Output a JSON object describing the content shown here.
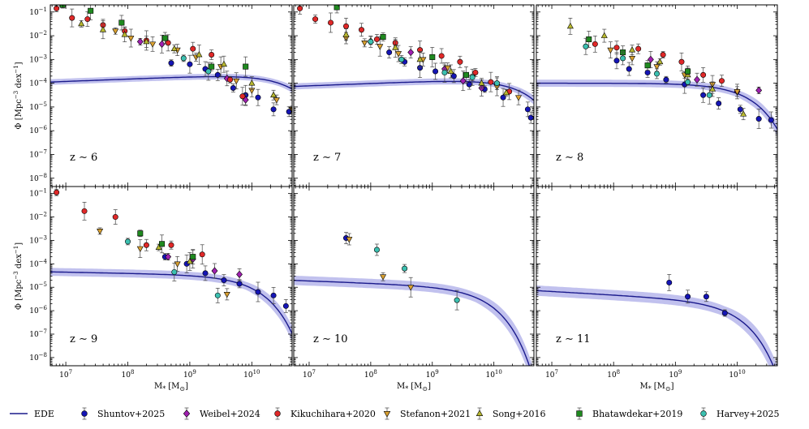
{
  "chart_data": {
    "type": "scatter",
    "description_units": {
      "x": "log10 stellar mass",
      "y": "log10 number density"
    },
    "x_label_text": "M",
    "x_label_sub": "*",
    "x_label_unit": "[M",
    "x_label_unit_sub": "⊙",
    "x_label_close": "]",
    "y_label_text": "Φ [Mpc",
    "y_label_sup1": "−3",
    "y_label_mid": " dex",
    "y_label_sup2": "−1",
    "y_label_close": "]",
    "xlim_log": [
      6.75,
      10.65
    ],
    "ylim_log": [
      -8.35,
      -0.7
    ],
    "x_tick_labels": [
      {
        "base": "10",
        "exp": "7",
        "v": 7
      },
      {
        "base": "10",
        "exp": "8",
        "v": 8
      },
      {
        "base": "10",
        "exp": "9",
        "v": 9
      },
      {
        "base": "10",
        "exp": "10",
        "v": 10
      }
    ],
    "y_tick_labels": [
      {
        "base": "10",
        "exp": "−1",
        "v": -1
      },
      {
        "base": "10",
        "exp": "−2",
        "v": -2
      },
      {
        "base": "10",
        "exp": "−3",
        "v": -3
      },
      {
        "base": "10",
        "exp": "−4",
        "v": -4
      },
      {
        "base": "10",
        "exp": "−5",
        "v": -5
      },
      {
        "base": "10",
        "exp": "−6",
        "v": -6
      },
      {
        "base": "10",
        "exp": "−7",
        "v": -7
      },
      {
        "base": "10",
        "exp": "−8",
        "v": -8
      }
    ],
    "legend": [
      {
        "name": "EDE",
        "kind": "line",
        "color": "#1a1a8c"
      },
      {
        "name": "Shuntov+2025",
        "kind": "circle",
        "color": "#1515b5"
      },
      {
        "name": "Weibel+2024",
        "kind": "diamond",
        "color": "#a020b0"
      },
      {
        "name": "Kikuchihara+2020",
        "kind": "circle",
        "color": "#e02828"
      },
      {
        "name": "Stefanon+2021",
        "kind": "tri-down",
        "color": "#d9a030"
      },
      {
        "name": "Song+2016",
        "kind": "tri-up",
        "color": "#b8b830"
      },
      {
        "name": "Bhatawdekar+2019",
        "kind": "square",
        "color": "#1f8a1f"
      },
      {
        "name": "Harvey+2025",
        "kind": "circle",
        "color": "#3cc0b0"
      }
    ],
    "panels": [
      {
        "label": "z ∼ 6",
        "model": {
          "a": -0.9,
          "mstar": 10.45,
          "logphi": -3.58,
          "band": 0.12
        },
        "series": {
          "Shuntov+2025": [
            [
              8.7,
              -3.15
            ],
            [
              9.0,
              -3.2
            ],
            [
              9.25,
              -3.4
            ],
            [
              9.45,
              -3.65
            ],
            [
              9.7,
              -4.2
            ],
            [
              9.9,
              -4.5
            ],
            [
              10.1,
              -4.6
            ],
            [
              10.35,
              -5.1
            ],
            [
              10.6,
              -5.2
            ]
          ],
          "Weibel+2024": [
            [
              8.2,
              -2.25
            ],
            [
              8.55,
              -2.35
            ],
            [
              9.6,
              -3.8
            ],
            [
              9.9,
              -4.7
            ]
          ],
          "Kikuchihara+2020": [
            [
              6.85,
              -0.85
            ],
            [
              7.1,
              -1.25
            ],
            [
              7.35,
              -1.3
            ],
            [
              7.6,
              -1.55
            ],
            [
              7.95,
              -1.8
            ],
            [
              8.3,
              -2.2
            ],
            [
              8.65,
              -2.3
            ],
            [
              9.05,
              -2.55
            ],
            [
              9.35,
              -2.8
            ],
            [
              9.65,
              -3.85
            ],
            [
              9.85,
              -4.55
            ]
          ],
          "Stefanon+2021": [
            [
              7.8,
              -1.8
            ],
            [
              8.05,
              -2.1
            ],
            [
              8.4,
              -2.35
            ],
            [
              8.8,
              -2.6
            ],
            [
              9.1,
              -2.9
            ],
            [
              9.5,
              -3.3
            ],
            [
              9.75,
              -3.9
            ],
            [
              10.0,
              -4.3
            ],
            [
              10.4,
              -4.7
            ],
            [
              10.65,
              -5.1
            ]
          ],
          "Song+2016": [
            [
              7.25,
              -1.5
            ],
            [
              7.6,
              -1.75
            ],
            [
              7.95,
              -1.95
            ],
            [
              8.3,
              -2.25
            ],
            [
              8.75,
              -2.55
            ],
            [
              9.15,
              -2.8
            ],
            [
              9.55,
              -3.2
            ],
            [
              10.0,
              -4.0
            ],
            [
              10.35,
              -4.5
            ]
          ],
          "Bhatawdekar+2019": [
            [
              6.95,
              -0.7
            ],
            [
              7.4,
              -0.95
            ],
            [
              7.9,
              -1.45
            ],
            [
              8.6,
              -2.1
            ],
            [
              9.35,
              -3.3
            ],
            [
              9.9,
              -3.3
            ]
          ],
          "Harvey+2025": [
            [
              8.9,
              -2.95
            ],
            [
              9.3,
              -3.5
            ]
          ]
        }
      },
      {
        "label": "z ∼ 7",
        "model": {
          "a": -0.9,
          "mstar": 10.3,
          "logphi": -3.78,
          "band": 0.13
        },
        "series": {
          "Shuntov+2025": [
            [
              8.3,
              -2.7
            ],
            [
              8.55,
              -3.1
            ],
            [
              8.8,
              -3.35
            ],
            [
              9.05,
              -3.5
            ],
            [
              9.35,
              -3.7
            ],
            [
              9.6,
              -4.05
            ],
            [
              9.85,
              -4.25
            ],
            [
              10.15,
              -4.6
            ],
            [
              10.55,
              -5.1
            ],
            [
              10.6,
              -5.45
            ]
          ],
          "Weibel+2024": [
            [
              8.65,
              -2.7
            ],
            [
              9.2,
              -3.4
            ],
            [
              9.5,
              -3.9
            ],
            [
              9.8,
              -4.2
            ]
          ],
          "Kikuchihara+2020": [
            [
              6.85,
              -0.85
            ],
            [
              7.1,
              -1.3
            ],
            [
              7.35,
              -1.45
            ],
            [
              7.6,
              -1.6
            ],
            [
              7.85,
              -1.75
            ],
            [
              8.1,
              -2.15
            ],
            [
              8.4,
              -2.3
            ],
            [
              8.8,
              -2.6
            ],
            [
              9.15,
              -2.85
            ],
            [
              9.45,
              -3.1
            ],
            [
              9.7,
              -3.55
            ],
            [
              9.95,
              -3.95
            ],
            [
              10.25,
              -4.35
            ]
          ],
          "Stefanon+2021": [
            [
              7.6,
              -2.1
            ],
            [
              7.9,
              -2.3
            ],
            [
              8.15,
              -2.45
            ],
            [
              8.45,
              -2.75
            ],
            [
              8.85,
              -3.0
            ],
            [
              9.25,
              -3.35
            ],
            [
              9.65,
              -3.75
            ],
            [
              10.05,
              -4.15
            ],
            [
              10.4,
              -4.6
            ]
          ],
          "Song+2016": [
            [
              7.6,
              -1.95
            ],
            [
              8.0,
              -2.2
            ],
            [
              8.4,
              -2.5
            ],
            [
              8.8,
              -3.0
            ],
            [
              9.3,
              -3.5
            ],
            [
              9.8,
              -4.0
            ],
            [
              10.2,
              -4.4
            ]
          ],
          "Bhatawdekar+2019": [
            [
              7.45,
              -0.8
            ],
            [
              8.2,
              -2.05
            ],
            [
              9.0,
              -2.9
            ],
            [
              9.55,
              -3.65
            ]
          ],
          "Harvey+2025": [
            [
              8.0,
              -2.25
            ],
            [
              8.5,
              -3.0
            ],
            [
              9.2,
              -3.55
            ],
            [
              9.65,
              -3.75
            ],
            [
              10.05,
              -4.0
            ]
          ]
        }
      },
      {
        "label": "z ∼ 8",
        "model": {
          "a": -1.0,
          "mstar": 10.0,
          "logphi": -4.0,
          "band": 0.15
        },
        "series": {
          "Shuntov+2025": [
            [
              8.05,
              -3.05
            ],
            [
              8.25,
              -3.4
            ],
            [
              8.55,
              -3.55
            ],
            [
              8.85,
              -3.85
            ],
            [
              9.15,
              -4.05
            ],
            [
              9.45,
              -4.5
            ],
            [
              9.7,
              -4.85
            ],
            [
              10.05,
              -5.1
            ],
            [
              10.35,
              -5.5
            ],
            [
              10.55,
              -5.55
            ]
          ],
          "Weibel+2024": [
            [
              8.6,
              -3.0
            ],
            [
              9.35,
              -3.85
            ],
            [
              10.0,
              -4.35
            ],
            [
              10.35,
              -4.3
            ]
          ],
          "Kikuchihara+2020": [
            [
              7.7,
              -2.35
            ],
            [
              8.05,
              -2.5
            ],
            [
              8.4,
              -2.55
            ],
            [
              8.8,
              -2.8
            ],
            [
              9.1,
              -3.1
            ],
            [
              9.45,
              -3.65
            ],
            [
              9.75,
              -3.9
            ]
          ],
          "Stefanon+2021": [
            [
              7.95,
              -2.6
            ],
            [
              8.3,
              -2.95
            ],
            [
              8.7,
              -3.3
            ],
            [
              9.15,
              -3.65
            ],
            [
              9.6,
              -4.05
            ],
            [
              10.0,
              -4.35
            ]
          ],
          "Song+2016": [
            [
              7.3,
              -1.6
            ],
            [
              7.85,
              -2.0
            ],
            [
              8.3,
              -2.6
            ],
            [
              8.75,
              -3.1
            ],
            [
              9.2,
              -3.65
            ],
            [
              9.6,
              -4.25
            ],
            [
              10.1,
              -5.3
            ]
          ],
          "Bhatawdekar+2019": [
            [
              7.6,
              -2.15
            ],
            [
              8.15,
              -2.7
            ],
            [
              8.55,
              -3.25
            ],
            [
              9.2,
              -3.5
            ]
          ],
          "Harvey+2025": [
            [
              7.55,
              -2.45
            ],
            [
              8.15,
              -2.95
            ],
            [
              8.7,
              -3.6
            ],
            [
              9.2,
              -3.95
            ],
            [
              9.55,
              -4.5
            ]
          ]
        }
      },
      {
        "label": "z ∼ 9",
        "model": {
          "a": -1.05,
          "mstar": 9.9,
          "logphi": -4.5,
          "band": 0.17
        },
        "series": {
          "Shuntov+2025": [
            [
              8.6,
              -3.7
            ],
            [
              8.95,
              -4.0
            ],
            [
              9.25,
              -4.4
            ],
            [
              9.55,
              -4.7
            ],
            [
              9.8,
              -4.85
            ],
            [
              10.1,
              -5.2
            ],
            [
              10.35,
              -5.35
            ],
            [
              10.55,
              -5.8
            ]
          ],
          "Weibel+2024": [
            [
              8.65,
              -3.7
            ],
            [
              9.05,
              -3.8
            ],
            [
              9.4,
              -4.3
            ],
            [
              9.8,
              -4.45
            ]
          ],
          "Kikuchihara+2020": [
            [
              6.85,
              -0.95
            ],
            [
              7.3,
              -1.75
            ],
            [
              7.8,
              -2.0
            ],
            [
              8.3,
              -3.2
            ],
            [
              8.7,
              -3.2
            ],
            [
              9.2,
              -3.6
            ]
          ],
          "Stefanon+2021": [
            [
              7.55,
              -2.6
            ],
            [
              8.2,
              -3.35
            ],
            [
              8.8,
              -4.0
            ],
            [
              9.6,
              -5.3
            ]
          ],
          "Song+2016": [
            [
              8.5,
              -3.3
            ],
            [
              9.0,
              -3.9
            ]
          ],
          "Bhatawdekar+2019": [
            [
              8.2,
              -2.7
            ],
            [
              8.55,
              -3.15
            ],
            [
              9.05,
              -3.7
            ]
          ],
          "Harvey+2025": [
            [
              8.0,
              -3.05
            ],
            [
              8.75,
              -4.35
            ],
            [
              9.45,
              -5.35
            ]
          ]
        }
      },
      {
        "label": "z ∼ 10",
        "model": {
          "a": -1.1,
          "mstar": 9.7,
          "logphi": -5.0,
          "band": 0.2
        },
        "series": {
          "Shuntov+2025": [
            [
              7.6,
              -2.9
            ]
          ],
          "Weibel+2024": [],
          "Kikuchihara+2020": [],
          "Stefanon+2021": [
            [
              7.65,
              -2.95
            ],
            [
              8.2,
              -4.55
            ],
            [
              8.65,
              -5.0
            ]
          ],
          "Song+2016": [],
          "Bhatawdekar+2019": [],
          "Harvey+2025": [
            [
              8.1,
              -3.4
            ],
            [
              8.55,
              -4.2
            ],
            [
              9.4,
              -5.55
            ]
          ]
        }
      },
      {
        "label": "z ∼ 11",
        "model": {
          "a": -1.15,
          "mstar": 9.8,
          "logphi": -5.6,
          "band": 0.22
        },
        "series": {
          "Shuntov+2025": [
            [
              8.9,
              -4.8
            ],
            [
              9.2,
              -5.4
            ],
            [
              9.5,
              -5.4
            ],
            [
              9.8,
              -6.1
            ]
          ],
          "Weibel+2024": [],
          "Kikuchihara+2020": [],
          "Stefanon+2021": [],
          "Song+2016": [],
          "Bhatawdekar+2019": [],
          "Harvey+2025": []
        }
      }
    ]
  }
}
